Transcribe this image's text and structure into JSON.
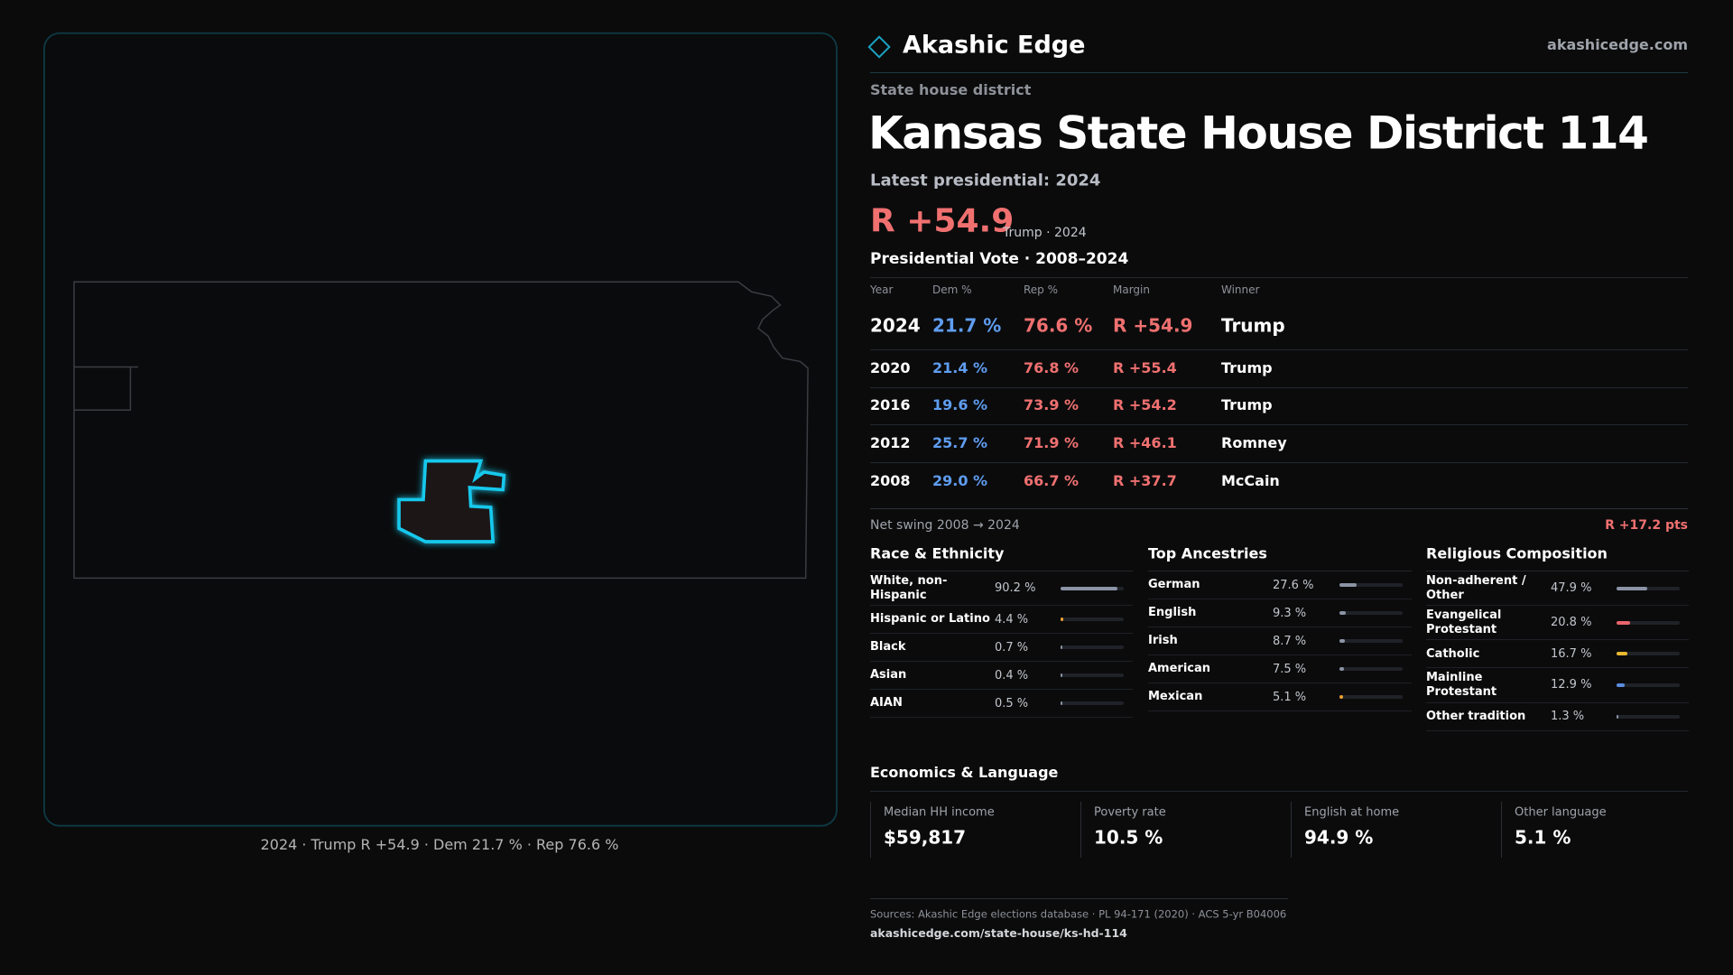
{
  "brand": {
    "name": "Akashic Edge",
    "site": "akashicedge.com"
  },
  "header": {
    "kicker": "State house district",
    "title": "Kansas State House District 114",
    "latest": "Latest presidential: 2024",
    "margin": "R +54.9",
    "margin_note": "Trump · 2024"
  },
  "map": {
    "caption": "2024 · Trump R +54.9 · Dem 21.7 % · Rep 76.6 %"
  },
  "vote_table": {
    "title": "Presidential Vote · 2008–2024",
    "columns": [
      "Year",
      "Dem %",
      "Rep %",
      "Margin",
      "Winner"
    ],
    "rows": [
      [
        "2024",
        "21.7 %",
        "76.6 %",
        "R +54.9",
        "Trump"
      ],
      [
        "2020",
        "21.4 %",
        "76.8 %",
        "R +55.4",
        "Trump"
      ],
      [
        "2016",
        "19.6 %",
        "73.9 %",
        "R +54.2",
        "Trump"
      ],
      [
        "2012",
        "25.7 %",
        "71.9 %",
        "R +46.1",
        "Romney"
      ],
      [
        "2008",
        "29.0 %",
        "66.7 %",
        "R +37.7",
        "McCain"
      ]
    ],
    "swing_label": "Net swing 2008 → 2024",
    "swing_value": "R +17.2 pts"
  },
  "panels": [
    {
      "title": "Race & Ethnicity",
      "rows": [
        {
          "name": "White, non-Hispanic",
          "value": 90.2,
          "label": "90.2 %",
          "color": "#8b94a5"
        },
        {
          "name": "Hispanic or Latino",
          "value": 4.4,
          "label": "4.4 %",
          "color": "#f0a030"
        },
        {
          "name": "Black",
          "value": 0.7,
          "label": "0.7 %",
          "color": "#8b94a5"
        },
        {
          "name": "Asian",
          "value": 0.4,
          "label": "0.4 %",
          "color": "#8b94a5"
        },
        {
          "name": "AIAN",
          "value": 0.5,
          "label": "0.5 %",
          "color": "#8b94a5"
        }
      ]
    },
    {
      "title": "Top Ancestries",
      "rows": [
        {
          "name": "German",
          "value": 27.6,
          "label": "27.6 %",
          "color": "#8b94a5"
        },
        {
          "name": "English",
          "value": 9.3,
          "label": "9.3 %",
          "color": "#8b94a5"
        },
        {
          "name": "Irish",
          "value": 8.7,
          "label": "8.7 %",
          "color": "#8b94a5"
        },
        {
          "name": "American",
          "value": 7.5,
          "label": "7.5 %",
          "color": "#8b94a5"
        },
        {
          "name": "Mexican",
          "value": 5.1,
          "label": "5.1 %",
          "color": "#f0a030"
        }
      ]
    },
    {
      "title": "Religious Composition",
      "rows": [
        {
          "name": "Non-adherent / Other",
          "value": 47.9,
          "label": "47.9 %",
          "color": "#8b94a5"
        },
        {
          "name": "Evangelical Protestant",
          "value": 20.8,
          "label": "20.8 %",
          "color": "#e8656b"
        },
        {
          "name": "Catholic",
          "value": 16.7,
          "label": "16.7 %",
          "color": "#e8b830"
        },
        {
          "name": "Mainline Protestant",
          "value": 12.9,
          "label": "12.9 %",
          "color": "#5a8de0"
        },
        {
          "name": "Other tradition",
          "value": 1.3,
          "label": "1.3 %",
          "color": "#8b94a5"
        }
      ]
    }
  ],
  "economics": {
    "title": "Economics & Language",
    "cards": [
      {
        "label": "Median HH income",
        "value": "$59,817"
      },
      {
        "label": "Poverty rate",
        "value": "10.5 %"
      },
      {
        "label": "English at home",
        "value": "94.9 %"
      },
      {
        "label": "Other language",
        "value": "5.1 %"
      }
    ]
  },
  "footer": {
    "sources": "Sources: Akashic Edge elections database · PL 94-171 (2020) · ACS 5-yr B04006",
    "url": "akashicedge.com/state-house/ks-hd-114"
  }
}
